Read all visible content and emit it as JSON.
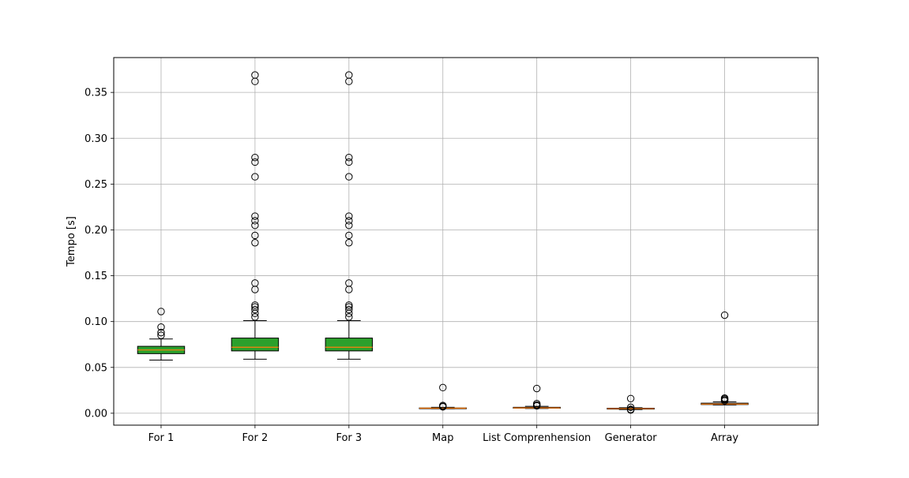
{
  "chart_data": {
    "type": "box",
    "title": "",
    "xlabel": "",
    "ylabel": "Tempo [s]",
    "ylim": [
      -0.013,
      0.388
    ],
    "yticks": [
      0.0,
      0.05,
      0.1,
      0.15,
      0.2,
      0.25,
      0.3,
      0.35
    ],
    "ytick_labels": [
      "0.00",
      "0.05",
      "0.10",
      "0.15",
      "0.20",
      "0.25",
      "0.30",
      "0.35"
    ],
    "grid": true,
    "colors": {
      "box_fill_large": "#2ca02c",
      "box_fill_small": "#1f77b4",
      "median": "#ff7f0e",
      "grid": "#b0b0b0",
      "edge": "#000000"
    },
    "categories": [
      "For 1",
      "For 2",
      "For 3",
      "Map",
      "List Comprenhension",
      "Generator",
      "Array"
    ],
    "boxes": [
      {
        "whislo": 0.058,
        "q1": 0.065,
        "med": 0.069,
        "q3": 0.073,
        "whishi": 0.081,
        "fliers": [
          0.085,
          0.088,
          0.094,
          0.111
        ]
      },
      {
        "whislo": 0.059,
        "q1": 0.068,
        "med": 0.072,
        "q3": 0.082,
        "whishi": 0.101,
        "fliers": [
          0.105,
          0.109,
          0.113,
          0.116,
          0.118,
          0.135,
          0.142,
          0.186,
          0.194,
          0.205,
          0.21,
          0.215,
          0.258,
          0.274,
          0.279,
          0.362,
          0.369
        ]
      },
      {
        "whislo": 0.059,
        "q1": 0.068,
        "med": 0.072,
        "q3": 0.082,
        "whishi": 0.101,
        "fliers": [
          0.105,
          0.109,
          0.113,
          0.116,
          0.118,
          0.135,
          0.142,
          0.186,
          0.194,
          0.205,
          0.21,
          0.215,
          0.258,
          0.274,
          0.279,
          0.362,
          0.369
        ]
      },
      {
        "whislo": 0.005,
        "q1": 0.0052,
        "med": 0.0055,
        "q3": 0.0058,
        "whishi": 0.0065,
        "fliers": [
          0.007,
          0.0075,
          0.0085,
          0.028
        ]
      },
      {
        "whislo": 0.0052,
        "q1": 0.0055,
        "med": 0.0058,
        "q3": 0.0065,
        "whishi": 0.0075,
        "fliers": [
          0.008,
          0.009,
          0.0105,
          0.027
        ]
      },
      {
        "whislo": 0.004,
        "q1": 0.0045,
        "med": 0.005,
        "q3": 0.0055,
        "whishi": 0.006,
        "fliers": [
          0.0035,
          0.0042,
          0.0065,
          0.016
        ]
      },
      {
        "whislo": 0.009,
        "q1": 0.0095,
        "med": 0.01,
        "q3": 0.011,
        "whishi": 0.0125,
        "fliers": [
          0.0135,
          0.0145,
          0.0155,
          0.0165,
          0.107
        ]
      }
    ]
  }
}
